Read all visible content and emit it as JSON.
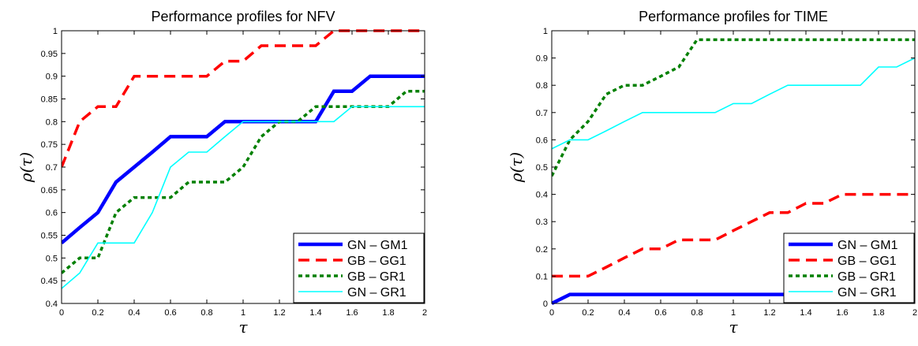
{
  "chart_data": [
    {
      "type": "line",
      "title": "Performance profiles for NFV",
      "xlabel": "τ",
      "ylabel": "ρ(τ)",
      "xlim": [
        0,
        2
      ],
      "ylim": [
        0.4,
        1
      ],
      "xticks": [
        "0",
        "0.2",
        "0.4",
        "0.6",
        "0.8",
        "1",
        "1.2",
        "1.4",
        "1.6",
        "1.8",
        "2"
      ],
      "yticks": [
        "0.4",
        "0.45",
        "0.5",
        "0.55",
        "0.6",
        "0.65",
        "0.7",
        "0.75",
        "0.8",
        "0.85",
        "0.9",
        "0.95",
        "1"
      ],
      "grid": false,
      "legend": "bottom-right",
      "series": [
        {
          "name": "GN – GM1",
          "color": "#0000ff",
          "style": "solid-thick",
          "points": [
            [
              0,
              0.533
            ],
            [
              0.1,
              0.567
            ],
            [
              0.2,
              0.6
            ],
            [
              0.3,
              0.667
            ],
            [
              0.4,
              0.7
            ],
            [
              0.5,
              0.733
            ],
            [
              0.6,
              0.767
            ],
            [
              0.8,
              0.767
            ],
            [
              0.9,
              0.8
            ],
            [
              1.4,
              0.8
            ],
            [
              1.5,
              0.867
            ],
            [
              1.6,
              0.867
            ],
            [
              1.7,
              0.9
            ],
            [
              2,
              0.9
            ]
          ]
        },
        {
          "name": "GB – GG1",
          "color": "#ff0000",
          "style": "dashed",
          "points": [
            [
              0,
              0.7
            ],
            [
              0.1,
              0.8
            ],
            [
              0.2,
              0.833
            ],
            [
              0.3,
              0.833
            ],
            [
              0.4,
              0.9
            ],
            [
              0.8,
              0.9
            ],
            [
              0.9,
              0.933
            ],
            [
              1.0,
              0.933
            ],
            [
              1.1,
              0.967
            ],
            [
              1.4,
              0.967
            ],
            [
              1.5,
              1.0
            ],
            [
              2,
              1.0
            ]
          ]
        },
        {
          "name": "GB – GR1",
          "color": "#008000",
          "style": "dotted",
          "points": [
            [
              0,
              0.467
            ],
            [
              0.1,
              0.5
            ],
            [
              0.2,
              0.5
            ],
            [
              0.3,
              0.6
            ],
            [
              0.4,
              0.633
            ],
            [
              0.6,
              0.633
            ],
            [
              0.7,
              0.667
            ],
            [
              0.9,
              0.667
            ],
            [
              1.0,
              0.7
            ],
            [
              1.1,
              0.767
            ],
            [
              1.2,
              0.8
            ],
            [
              1.3,
              0.8
            ],
            [
              1.4,
              0.833
            ],
            [
              1.8,
              0.833
            ],
            [
              1.9,
              0.867
            ],
            [
              2,
              0.867
            ]
          ]
        },
        {
          "name": "GN – GR1",
          "color": "#00ffff",
          "style": "thin",
          "points": [
            [
              0,
              0.433
            ],
            [
              0.1,
              0.467
            ],
            [
              0.2,
              0.533
            ],
            [
              0.4,
              0.533
            ],
            [
              0.5,
              0.6
            ],
            [
              0.6,
              0.7
            ],
            [
              0.7,
              0.733
            ],
            [
              0.8,
              0.733
            ],
            [
              0.9,
              0.767
            ],
            [
              1.0,
              0.8
            ],
            [
              1.5,
              0.8
            ],
            [
              1.6,
              0.833
            ],
            [
              2,
              0.833
            ]
          ]
        }
      ]
    },
    {
      "type": "line",
      "title": "Performance profiles for TIME",
      "xlabel": "τ",
      "ylabel": "ρ(τ)",
      "xlim": [
        0,
        2
      ],
      "ylim": [
        0,
        1
      ],
      "xticks": [
        "0",
        "0.2",
        "0.4",
        "0.6",
        "0.8",
        "1",
        "1.2",
        "1.4",
        "1.6",
        "1.8",
        "2"
      ],
      "yticks": [
        "0",
        "0.1",
        "0.2",
        "0.3",
        "0.4",
        "0.5",
        "0.6",
        "0.7",
        "0.8",
        "0.9",
        "1"
      ],
      "grid": false,
      "legend": "bottom-right",
      "series": [
        {
          "name": "GN – GM1",
          "color": "#0000ff",
          "style": "solid-thick",
          "points": [
            [
              0,
              0
            ],
            [
              0.1,
              0.033
            ],
            [
              1.8,
              0.033
            ],
            [
              1.9,
              0.067
            ],
            [
              2,
              0.1
            ]
          ]
        },
        {
          "name": "GB – GG1",
          "color": "#ff0000",
          "style": "dashed",
          "points": [
            [
              0,
              0.1
            ],
            [
              0.2,
              0.1
            ],
            [
              0.3,
              0.133
            ],
            [
              0.4,
              0.167
            ],
            [
              0.5,
              0.2
            ],
            [
              0.6,
              0.2
            ],
            [
              0.7,
              0.233
            ],
            [
              0.8,
              0.233
            ],
            [
              0.9,
              0.233
            ],
            [
              1.0,
              0.267
            ],
            [
              1.1,
              0.3
            ],
            [
              1.2,
              0.333
            ],
            [
              1.3,
              0.333
            ],
            [
              1.4,
              0.367
            ],
            [
              1.5,
              0.367
            ],
            [
              1.6,
              0.4
            ],
            [
              2,
              0.4
            ]
          ]
        },
        {
          "name": "GB – GR1",
          "color": "#008000",
          "style": "dotted",
          "points": [
            [
              0,
              0.467
            ],
            [
              0.1,
              0.6
            ],
            [
              0.2,
              0.667
            ],
            [
              0.3,
              0.767
            ],
            [
              0.4,
              0.8
            ],
            [
              0.5,
              0.8
            ],
            [
              0.6,
              0.833
            ],
            [
              0.7,
              0.867
            ],
            [
              0.8,
              0.967
            ],
            [
              2,
              0.967
            ]
          ]
        },
        {
          "name": "GN – GR1",
          "color": "#00ffff",
          "style": "thin",
          "points": [
            [
              0,
              0.567
            ],
            [
              0.1,
              0.6
            ],
            [
              0.2,
              0.6
            ],
            [
              0.3,
              0.633
            ],
            [
              0.4,
              0.667
            ],
            [
              0.5,
              0.7
            ],
            [
              0.9,
              0.7
            ],
            [
              1.0,
              0.733
            ],
            [
              1.1,
              0.733
            ],
            [
              1.2,
              0.767
            ],
            [
              1.3,
              0.8
            ],
            [
              1.7,
              0.8
            ],
            [
              1.8,
              0.867
            ],
            [
              1.9,
              0.867
            ],
            [
              2,
              0.9
            ]
          ]
        }
      ]
    }
  ]
}
